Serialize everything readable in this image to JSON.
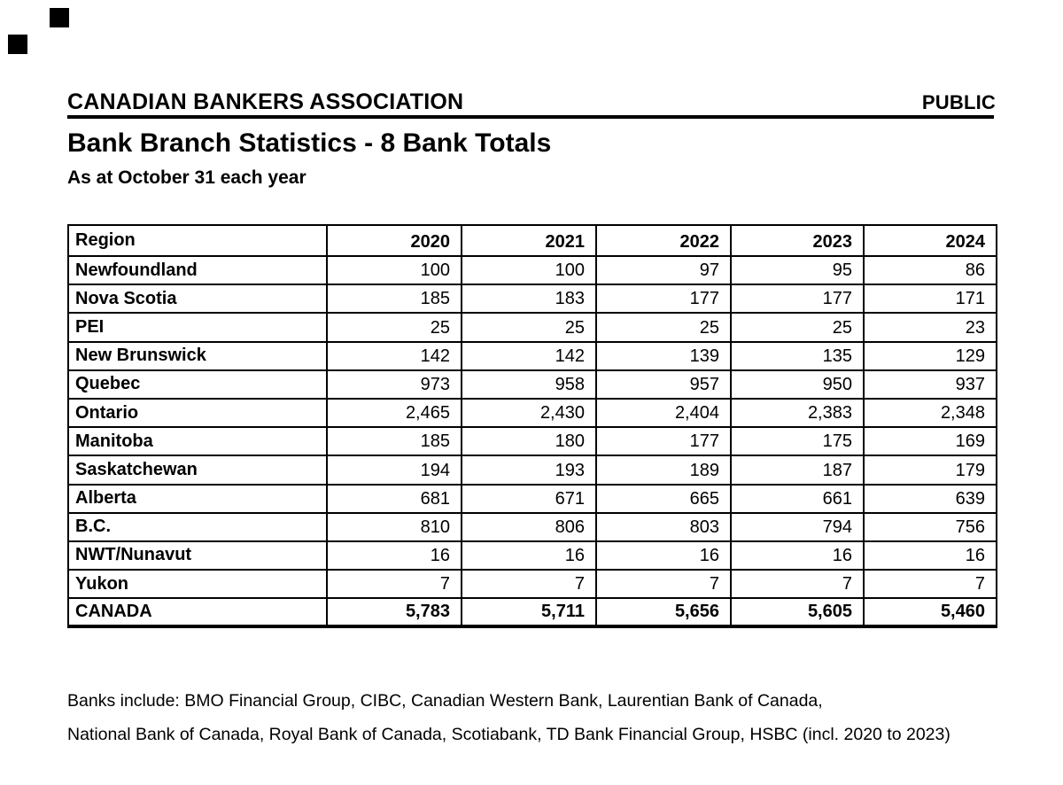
{
  "header": {
    "org_name": "CANADIAN BANKERS ASSOCIATION",
    "classification": "PUBLIC",
    "title": "Bank Branch Statistics - 8 Bank Totals",
    "subtitle": "As at October 31 each year"
  },
  "table": {
    "columns": [
      "Region",
      "2020",
      "2021",
      "2022",
      "2023",
      "2024"
    ],
    "rows": [
      [
        "Newfoundland",
        "100",
        "100",
        "97",
        "95",
        "86"
      ],
      [
        "Nova Scotia",
        "185",
        "183",
        "177",
        "177",
        "171"
      ],
      [
        "PEI",
        "25",
        "25",
        "25",
        "25",
        "23"
      ],
      [
        "New Brunswick",
        "142",
        "142",
        "139",
        "135",
        "129"
      ],
      [
        "Quebec",
        "973",
        "958",
        "957",
        "950",
        "937"
      ],
      [
        "Ontario",
        "2,465",
        "2,430",
        "2,404",
        "2,383",
        "2,348"
      ],
      [
        "Manitoba",
        "185",
        "180",
        "177",
        "175",
        "169"
      ],
      [
        "Saskatchewan",
        "194",
        "193",
        "189",
        "187",
        "179"
      ],
      [
        "Alberta",
        "681",
        "671",
        "665",
        "661",
        "639"
      ],
      [
        "B.C.",
        "810",
        "806",
        "803",
        "794",
        "756"
      ],
      [
        "NWT/Nunavut",
        "16",
        "16",
        "16",
        "16",
        "16"
      ],
      [
        "Yukon",
        "7",
        "7",
        "7",
        "7",
        "7"
      ]
    ],
    "total_row": [
      "CANADA",
      "5,783",
      "5,711",
      "5,656",
      "5,605",
      "5,460"
    ]
  },
  "chart_data": {
    "type": "table",
    "title": "Bank Branch Statistics - 8 Bank Totals",
    "categories": [
      "2020",
      "2021",
      "2022",
      "2023",
      "2024"
    ],
    "series": [
      {
        "name": "Newfoundland",
        "values": [
          100,
          100,
          97,
          95,
          86
        ]
      },
      {
        "name": "Nova Scotia",
        "values": [
          185,
          183,
          177,
          177,
          171
        ]
      },
      {
        "name": "PEI",
        "values": [
          25,
          25,
          25,
          25,
          23
        ]
      },
      {
        "name": "New Brunswick",
        "values": [
          142,
          142,
          139,
          135,
          129
        ]
      },
      {
        "name": "Quebec",
        "values": [
          973,
          958,
          957,
          950,
          937
        ]
      },
      {
        "name": "Ontario",
        "values": [
          2465,
          2430,
          2404,
          2383,
          2348
        ]
      },
      {
        "name": "Manitoba",
        "values": [
          185,
          180,
          177,
          175,
          169
        ]
      },
      {
        "name": "Saskatchewan",
        "values": [
          194,
          193,
          189,
          187,
          179
        ]
      },
      {
        "name": "Alberta",
        "values": [
          681,
          671,
          665,
          661,
          639
        ]
      },
      {
        "name": "B.C.",
        "values": [
          810,
          806,
          803,
          794,
          756
        ]
      },
      {
        "name": "NWT/Nunavut",
        "values": [
          16,
          16,
          16,
          16,
          16
        ]
      },
      {
        "name": "Yukon",
        "values": [
          7,
          7,
          7,
          7,
          7
        ]
      },
      {
        "name": "CANADA",
        "values": [
          5783,
          5711,
          5656,
          5605,
          5460
        ]
      }
    ]
  },
  "footnote": {
    "line1": "Banks include: BMO Financial Group, CIBC, Canadian Western Bank, Laurentian Bank of Canada,",
    "line2": "National Bank of Canada, Royal Bank of Canada, Scotiabank, TD Bank Financial Group, HSBC (incl. 2020 to 2023)"
  },
  "decorations": {
    "corner_marks_count": 2
  },
  "colors": {
    "text": "#000000",
    "background": "#ffffff",
    "border": "#000000"
  }
}
